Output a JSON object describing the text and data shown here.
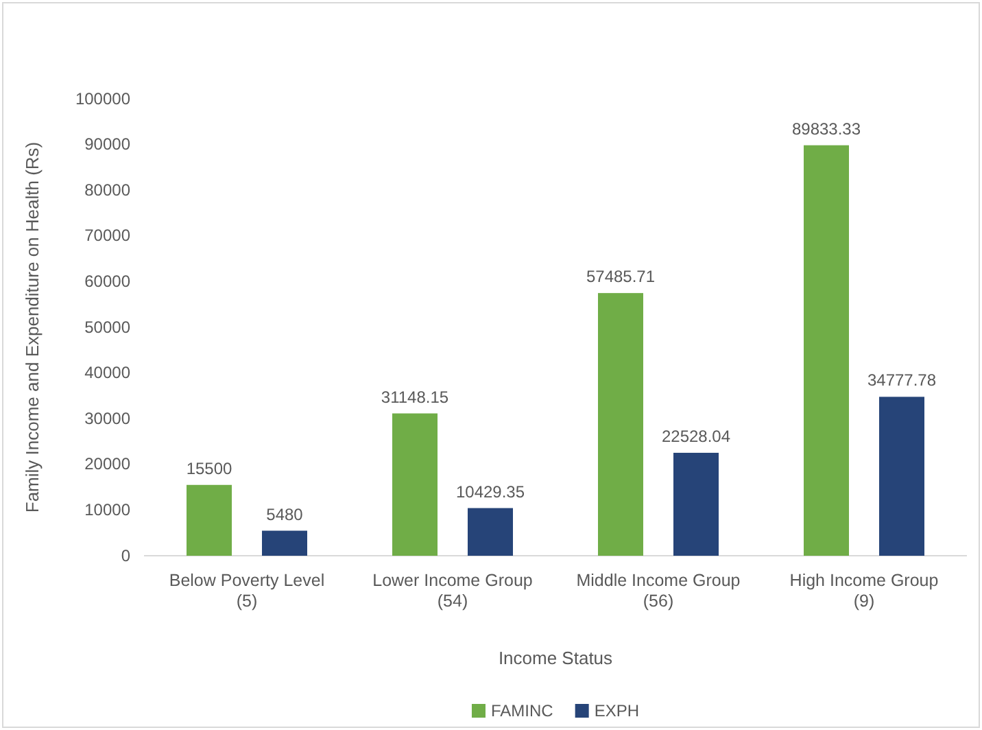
{
  "chart_data": {
    "type": "bar",
    "xlabel": "Income Status",
    "ylabel": "Family Income and Expenditure on Health (Rs)",
    "categories": [
      "Below Poverty Level (5)",
      "Lower Income Group (54)",
      "Middle Income Group (56)",
      "High Income Group (9)"
    ],
    "series": [
      {
        "name": "FAMINC",
        "color": "#70ad47",
        "values": [
          15500,
          31148.15,
          57485.71,
          89833.33
        ]
      },
      {
        "name": "EXPH",
        "color": "#264478",
        "values": [
          5480,
          10429.35,
          22528.04,
          34777.78
        ]
      }
    ],
    "ylim": [
      0,
      100000
    ],
    "yticks": [
      0,
      10000,
      20000,
      30000,
      40000,
      50000,
      60000,
      70000,
      80000,
      90000,
      100000
    ],
    "grid": false,
    "data_labels": true,
    "legend": "bottom"
  }
}
